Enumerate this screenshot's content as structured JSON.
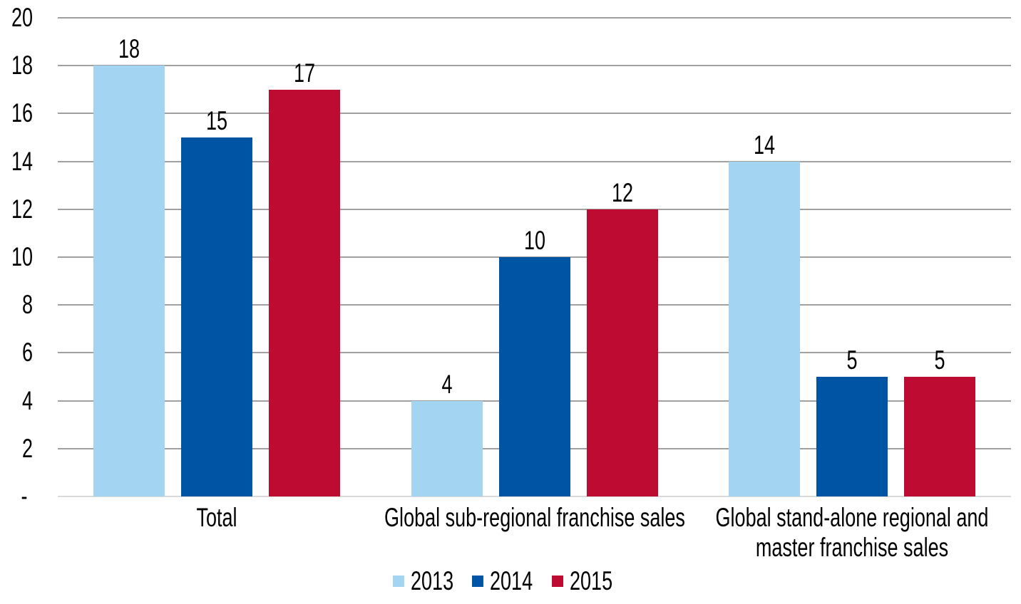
{
  "chart_data": {
    "type": "bar",
    "title": "",
    "xlabel": "",
    "ylabel": "",
    "categories": [
      "Total",
      "Global sub-regional franchise sales",
      "Global stand-alone regional and\nmaster franchise sales"
    ],
    "series": [
      {
        "name": "2013",
        "color": "#A3D5F2",
        "values": [
          18,
          4,
          14
        ]
      },
      {
        "name": "2014",
        "color": "#0054A4",
        "values": [
          15,
          10,
          5
        ]
      },
      {
        "name": "2015",
        "color": "#BE0B31",
        "values": [
          17,
          12,
          5
        ]
      }
    ],
    "ylim": [
      0,
      20
    ],
    "yticks": {
      "values": [
        0,
        2,
        4,
        6,
        8,
        10,
        12,
        14,
        16,
        18,
        20
      ],
      "labels": [
        "- ",
        "2",
        "4",
        "6",
        "8",
        "10",
        "12",
        "14",
        "16",
        "18",
        "20"
      ]
    },
    "grid": true,
    "data_labels": true,
    "legend_position": "bottom"
  },
  "style": {
    "background": "#FFFFFF",
    "text_color": "#000000",
    "grid_color": "#A0A0A0",
    "baseline_color": "#D9D9D9"
  }
}
